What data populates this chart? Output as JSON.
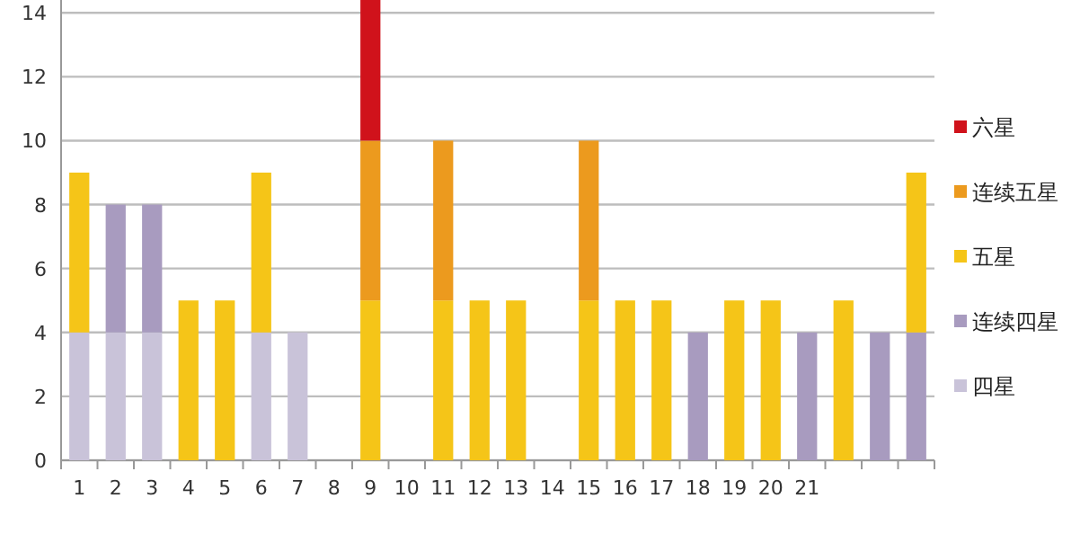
{
  "chart_data": {
    "type": "bar",
    "stacked": true,
    "categories": [
      "1",
      "2",
      "3",
      "4",
      "5",
      "6",
      "7",
      "8",
      "9",
      "10",
      "11",
      "12",
      "13",
      "14",
      "15",
      "16",
      "17",
      "18",
      "19",
      "20",
      "21",
      null,
      null,
      null
    ],
    "series": [
      {
        "name": "四星",
        "color": "#c9c3d9",
        "values": [
          4,
          4,
          4,
          null,
          null,
          4,
          4,
          null,
          null,
          null,
          null,
          null,
          null,
          null,
          null,
          null,
          null,
          null,
          null,
          null,
          null,
          null,
          null,
          null
        ]
      },
      {
        "name": "连续四星",
        "color": "#a89bbf",
        "values": [
          null,
          4,
          4,
          null,
          null,
          null,
          null,
          null,
          null,
          null,
          null,
          null,
          null,
          null,
          null,
          null,
          null,
          4,
          null,
          null,
          4,
          null,
          4,
          4
        ]
      },
      {
        "name": "五星",
        "color": "#f5c518",
        "values": [
          5,
          null,
          null,
          5,
          5,
          5,
          null,
          null,
          5,
          null,
          5,
          5,
          5,
          null,
          5,
          5,
          5,
          null,
          5,
          5,
          null,
          5,
          null,
          5
        ]
      },
      {
        "name": "连续五星",
        "color": "#ec9a1e",
        "values": [
          null,
          null,
          null,
          null,
          null,
          null,
          null,
          null,
          5,
          null,
          5,
          null,
          null,
          null,
          5,
          null,
          null,
          null,
          null,
          null,
          null,
          null,
          null,
          null
        ]
      },
      {
        "name": "六星",
        "color": "#d0121b",
        "values": [
          null,
          null,
          null,
          null,
          null,
          null,
          null,
          null,
          4.4,
          null,
          null,
          null,
          null,
          null,
          null,
          null,
          null,
          null,
          null,
          null,
          null,
          null,
          null,
          null
        ]
      }
    ],
    "ylim": [
      0,
      14.4
    ],
    "yticks": [
      0,
      2,
      4,
      6,
      8,
      10,
      12,
      14
    ],
    "grid": "y",
    "legend": "right"
  }
}
